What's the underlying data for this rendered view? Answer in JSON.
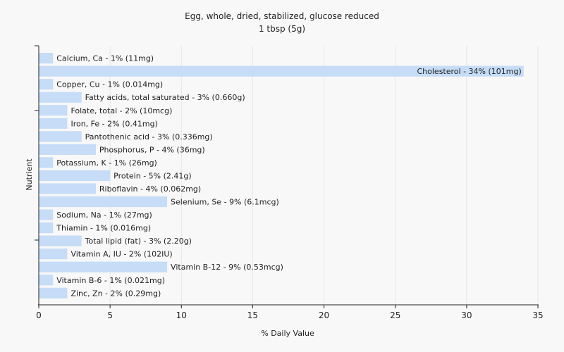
{
  "chart_data": {
    "type": "bar",
    "orientation": "horizontal",
    "title": "Egg, whole, dried, stabilized, glucose reduced",
    "subtitle": "1 tbsp (5g)",
    "xlabel": "% Daily Value",
    "ylabel": "Nutrient",
    "xlim": [
      0,
      35
    ],
    "xticks": [
      0,
      5,
      10,
      15,
      20,
      25,
      30,
      35
    ],
    "grid": true,
    "bar_color": "#c6dcf7",
    "categories": [
      "Calcium, Ca",
      "Cholesterol",
      "Copper, Cu",
      "Fatty acids, total saturated",
      "Folate, total",
      "Iron, Fe",
      "Pantothenic acid",
      "Phosphorus, P",
      "Potassium, K",
      "Protein",
      "Riboflavin",
      "Selenium, Se",
      "Sodium, Na",
      "Thiamin",
      "Total lipid (fat)",
      "Vitamin A, IU",
      "Vitamin B-12",
      "Vitamin B-6",
      "Zinc, Zn"
    ],
    "values": [
      1,
      34,
      1,
      3,
      2,
      2,
      3,
      4,
      1,
      5,
      4,
      9,
      1,
      1,
      3,
      2,
      9,
      1,
      2
    ],
    "labels": [
      "Calcium, Ca - 1% (11mg)",
      "Cholesterol - 34% (101mg)",
      "Copper, Cu - 1% (0.014mg)",
      "Fatty acids, total saturated - 3% (0.660g)",
      "Folate, total - 2% (10mcg)",
      "Iron, Fe - 2% (0.41mg)",
      "Pantothenic acid - 3% (0.336mg)",
      "Phosphorus, P - 4% (36mg)",
      "Potassium, K - 1% (26mg)",
      "Protein - 5% (2.41g)",
      "Riboflavin - 4% (0.062mg)",
      "Selenium, Se - 9% (6.1mcg)",
      "Sodium, Na - 1% (27mg)",
      "Thiamin - 1% (0.016mg)",
      "Total lipid (fat) - 3% (2.20g)",
      "Vitamin A, IU - 2% (102IU)",
      "Vitamin B-12 - 9% (0.53mcg)",
      "Vitamin B-6 - 1% (0.021mg)",
      "Zinc, Zn - 2% (0.29mg)"
    ]
  }
}
